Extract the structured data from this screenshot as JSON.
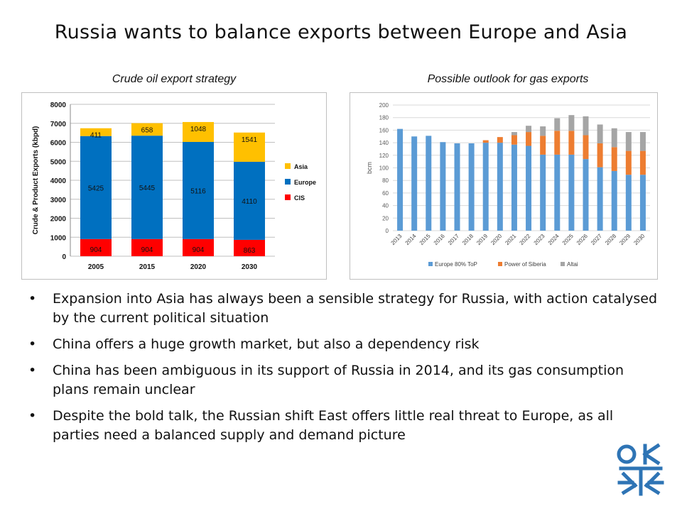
{
  "title": "Russia wants to balance exports between Europe and Asia",
  "left_subtitle": "Crude oil export strategy",
  "right_subtitle": "Possible outlook for gas exports",
  "bullets": [
    "Expansion into Asia has always been a sensible strategy for Russia, with action catalysed by the current political situation",
    "China offers a huge growth market, but also a dependency risk",
    "China has been ambiguous in its support of Russia in 2014, and its gas consumption plans remain unclear",
    "Despite the bold talk, the Russian shift East offers little real threat to Europe, as all parties need a balanced supply and demand picture"
  ],
  "bullet_symbol": "•",
  "colors": {
    "oil_asia": "#FFC000",
    "oil_europe": "#0070C0",
    "oil_cis": "#FF0000",
    "gas_europe": "#5B9BD5",
    "gas_power_of_siberia": "#ED7D31",
    "gas_altai": "#A5A5A5"
  },
  "logo_icon": "oxford-institute-logo-icon",
  "chart_data": [
    {
      "type": "bar",
      "stacked": true,
      "categories": [
        "2005",
        "2015",
        "2020",
        "2030"
      ],
      "series": [
        {
          "name": "CIS",
          "values": [
            904,
            904,
            904,
            863
          ]
        },
        {
          "name": "Europe",
          "values": [
            5425,
            5445,
            5116,
            4110
          ]
        },
        {
          "name": "Asia",
          "values": [
            411,
            658,
            1048,
            1541
          ]
        }
      ],
      "ylabel": "Crude & Product Exports (kbpd)",
      "xlabel": "",
      "ylim": [
        0,
        8000
      ],
      "yticks": [
        0,
        1000,
        2000,
        3000,
        4000,
        5000,
        6000,
        7000,
        8000
      ],
      "grid": true,
      "legend": "right",
      "data_labels": true
    },
    {
      "type": "bar",
      "stacked": true,
      "categories": [
        "2013",
        "2014",
        "2015",
        "2016",
        "2017",
        "2018",
        "2019",
        "2020",
        "2021",
        "2022",
        "2023",
        "2024",
        "2025",
        "2026",
        "2027",
        "2028",
        "2029",
        "2030"
      ],
      "series": [
        {
          "name": "Europe 80% ToP",
          "values": [
            162,
            150,
            151,
            141,
            139,
            139,
            140,
            140,
            137,
            135,
            121,
            121,
            121,
            114,
            101,
            95,
            89,
            89
          ]
        },
        {
          "name": "Power of Siberia",
          "values": [
            0,
            0,
            0,
            0,
            0,
            0,
            4,
            9,
            15,
            22,
            30,
            38,
            38,
            38,
            38,
            38,
            38,
            38
          ]
        },
        {
          "name": "Altai",
          "values": [
            0,
            0,
            0,
            0,
            0,
            0,
            0,
            0,
            5,
            10,
            15,
            20,
            25,
            30,
            30,
            30,
            30,
            30
          ]
        }
      ],
      "ylabel": "bcm",
      "xlabel": "",
      "ylim": [
        0,
        200
      ],
      "yticks": [
        0,
        20,
        40,
        60,
        80,
        100,
        120,
        140,
        160,
        180,
        200
      ],
      "grid": true,
      "legend": "bottom"
    }
  ]
}
